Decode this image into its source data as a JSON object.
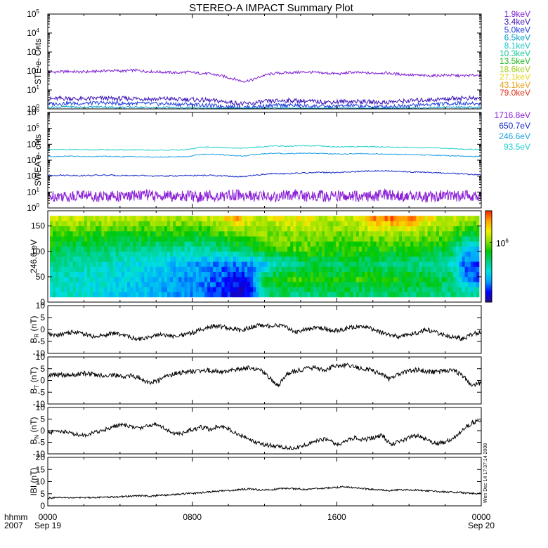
{
  "title": "STEREO-A IMPACT Summary Plot",
  "footer": {
    "row1_label": "hhmm",
    "row2_label": "2007",
    "x_ticks": [
      "0000",
      "0800",
      "1600",
      "0000"
    ],
    "x_dates": [
      "Sep 19",
      "",
      "",
      "Sep 20"
    ]
  },
  "stamp": "Wen Dec 14 17:37:14 2008",
  "chart_data": [
    {
      "type": "line",
      "ylabel": "STE e- Cnts",
      "yscale": "log",
      "ylim": [
        1,
        100000
      ],
      "yticks_exp": [
        0,
        1,
        2,
        3,
        4,
        5
      ],
      "xlim_hours": [
        0,
        24
      ],
      "series": [
        {
          "name": "1.9keV",
          "color": "#7f1fd6",
          "values": [
            85,
            90,
            95,
            88,
            92,
            100,
            105,
            98,
            110,
            95,
            90,
            85,
            80,
            88,
            75,
            70,
            55,
            40,
            28,
            35,
            60,
            75,
            80,
            85,
            88,
            80,
            75,
            70,
            85,
            80,
            75,
            80,
            70,
            65,
            60,
            55,
            58,
            60,
            55,
            58,
            62
          ]
        },
        {
          "name": "3.4keV",
          "color": "#3b14b8",
          "values": [
            3.2,
            3.5,
            3.6,
            3.3,
            3.5,
            3.7,
            3.4,
            3.5,
            3.6,
            3.4,
            3.3,
            3.5,
            3.1,
            3.2,
            3.0,
            2.8,
            2.5,
            2.2,
            1.8,
            2.0,
            2.4,
            2.6,
            2.8,
            2.7,
            2.5,
            2.4,
            2.3,
            2.4,
            2.5,
            2.4,
            2.3,
            2.2,
            2.4,
            2.6,
            2.8,
            3.0,
            3.2,
            3.5,
            3.8,
            3.6,
            3.4
          ]
        },
        {
          "name": "5.0keV",
          "color": "#1c3de0",
          "values": [
            1.8,
            1.9,
            2.0,
            1.9,
            2.0,
            2.1,
            2.0,
            1.9,
            2.0,
            1.9,
            1.8,
            1.9,
            1.7,
            1.8,
            1.6,
            1.5,
            1.4,
            1.3,
            1.2,
            1.3,
            1.4,
            1.5,
            1.6,
            1.5,
            1.4,
            1.4,
            1.3,
            1.4,
            1.5,
            1.4,
            1.3,
            1.3,
            1.4,
            1.5,
            1.6,
            1.7,
            1.8,
            1.9,
            2.0,
            1.9,
            1.8
          ]
        },
        {
          "name": "6.5keV",
          "color": "#0aa0c8",
          "values": [
            1.2,
            1.25,
            1.3,
            1.2,
            1.25,
            1.3,
            1.2,
            1.2,
            1.25,
            1.2,
            1.15,
            1.2,
            1.1,
            1.15,
            1.1,
            1.05,
            1.0,
            1.0,
            1.0,
            1.0,
            1.05,
            1.1,
            1.1,
            1.05,
            1.05,
            1.0,
            1.0,
            1.05,
            1.05,
            1.0,
            1.0,
            1.0,
            1.05,
            1.1,
            1.1,
            1.15,
            1.2,
            1.2,
            1.25,
            1.2,
            1.15
          ]
        }
      ],
      "legend": [
        {
          "label": "1.9keV",
          "color": "#7f1fd6"
        },
        {
          "label": "3.4keV",
          "color": "#3b14b8"
        },
        {
          "label": "5.0keV",
          "color": "#1c3de0"
        },
        {
          "label": "6.5keV",
          "color": "#0aa0c8"
        },
        {
          "label": "8.1keV",
          "color": "#16c8c8"
        },
        {
          "label": "10.3keV",
          "color": "#16c89c"
        },
        {
          "label": "13.5keV",
          "color": "#1fb81f"
        },
        {
          "label": "18.6keV",
          "color": "#9ecf1a"
        },
        {
          "label": "27.1keV",
          "color": "#e8d51a"
        },
        {
          "label": "43.1keV",
          "color": "#e8a01a"
        },
        {
          "label": "79.0keV",
          "color": "#e0321a"
        }
      ]
    },
    {
      "type": "line",
      "ylabel": "SWEA e- cnts",
      "yscale": "log",
      "ylim": [
        1,
        1000000
      ],
      "yticks_exp": [
        0,
        1,
        2,
        3,
        4,
        5,
        6
      ],
      "xlim_hours": [
        0,
        24
      ],
      "series": [
        {
          "name": "93.5eV",
          "color": "#1fd0cf",
          "values": [
            4500,
            4600,
            4700,
            4500,
            4400,
            4600,
            4500,
            4400,
            4500,
            4300,
            4200,
            4300,
            4400,
            4500,
            6500,
            6800,
            6200,
            5800,
            5500,
            6500,
            7000,
            8000,
            7500,
            7800,
            8000,
            7800,
            7000,
            6800,
            7000,
            7200,
            7000,
            6800,
            6500,
            6500,
            6200,
            6000,
            5800,
            5500,
            5000,
            4800,
            4700
          ]
        },
        {
          "name": "246.6eV",
          "color": "#1c9fe0",
          "values": [
            1700,
            1750,
            1800,
            1700,
            1650,
            1750,
            1700,
            1650,
            1700,
            1600,
            1550,
            1600,
            1650,
            1700,
            2300,
            2400,
            2200,
            2000,
            1800,
            2200,
            2500,
            2700,
            2600,
            2700,
            2800,
            2700,
            2500,
            2400,
            2500,
            2600,
            2500,
            2400,
            2300,
            2300,
            2200,
            2100,
            2000,
            1900,
            1800,
            1750,
            1700
          ]
        },
        {
          "name": "650.7eV",
          "color": "#1428c8",
          "values": [
            110,
            115,
            112,
            108,
            110,
            115,
            112,
            110,
            108,
            105,
            100,
            102,
            105,
            108,
            110,
            112,
            105,
            95,
            90,
            110,
            130,
            150,
            140,
            150,
            160,
            170,
            165,
            170,
            180,
            200,
            210,
            220,
            200,
            190,
            180,
            170,
            160,
            150,
            140,
            130,
            120
          ]
        },
        {
          "name": "1716.8eV",
          "color": "#8a1fd6",
          "values": [
            5,
            6,
            5,
            7,
            6,
            5,
            6,
            5,
            6,
            7,
            5,
            6,
            5,
            6,
            5,
            6,
            5,
            7,
            6,
            5,
            6,
            5,
            6,
            7,
            5,
            6,
            5,
            6,
            5,
            6,
            5,
            7,
            6,
            5,
            6,
            5,
            6,
            7,
            5,
            6,
            5
          ]
        }
      ],
      "legend": [
        {
          "label": "1716.8eV",
          "color": "#8a1fd6"
        },
        {
          "label": "650.7eV",
          "color": "#1428c8"
        },
        {
          "label": "246.6eV",
          "color": "#1c9fe0"
        },
        {
          "label": "93.5eV",
          "color": "#1fd0cf"
        }
      ]
    },
    {
      "type": "heatmap",
      "ylabel": "246.6 eV",
      "ylim": [
        0,
        180
      ],
      "yticks": [
        0,
        50,
        100,
        150
      ],
      "xlim_hours": [
        0,
        24
      ],
      "y_centers": [
        15,
        45,
        75,
        105,
        135,
        165
      ],
      "colorbar_label": "10",
      "colorbar_label_exp": "6",
      "colorbar_tick_frac": 0.65,
      "colorbar_stops": [
        "#2a0a8a",
        "#0000ff",
        "#00a0ff",
        "#00e0e0",
        "#00d080",
        "#00c800",
        "#90e000",
        "#f0f000",
        "#ffa000",
        "#ff2000"
      ],
      "values": [
        [
          0.38,
          0.36,
          0.35,
          0.34,
          0.32,
          0.3,
          0.28,
          0.28,
          0.26,
          0.24,
          0.22,
          0.2,
          0.15,
          0.12,
          0.08,
          0.1,
          0.45,
          0.48,
          0.46,
          0.44,
          0.45,
          0.46,
          0.47,
          0.46,
          0.45,
          0.46,
          0.48,
          0.46,
          0.45,
          0.44,
          0.43,
          0.42,
          0.42
        ],
        [
          0.38,
          0.37,
          0.36,
          0.34,
          0.33,
          0.31,
          0.29,
          0.28,
          0.27,
          0.25,
          0.23,
          0.21,
          0.18,
          0.15,
          0.12,
          0.14,
          0.5,
          0.55,
          0.58,
          0.6,
          0.56,
          0.55,
          0.56,
          0.58,
          0.56,
          0.55,
          0.56,
          0.54,
          0.52,
          0.5,
          0.48,
          0.22,
          0.2
        ],
        [
          0.4,
          0.4,
          0.39,
          0.38,
          0.37,
          0.35,
          0.33,
          0.32,
          0.3,
          0.28,
          0.26,
          0.24,
          0.22,
          0.2,
          0.2,
          0.22,
          0.3,
          0.38,
          0.4,
          0.45,
          0.5,
          0.48,
          0.47,
          0.48,
          0.47,
          0.46,
          0.45,
          0.44,
          0.42,
          0.4,
          0.38,
          0.18,
          0.15
        ],
        [
          0.52,
          0.5,
          0.48,
          0.47,
          0.46,
          0.45,
          0.44,
          0.43,
          0.42,
          0.42,
          0.4,
          0.4,
          0.42,
          0.45,
          0.48,
          0.5,
          0.55,
          0.58,
          0.6,
          0.62,
          0.6,
          0.58,
          0.58,
          0.59,
          0.58,
          0.57,
          0.56,
          0.55,
          0.54,
          0.52,
          0.5,
          0.3,
          0.25
        ],
        [
          0.6,
          0.6,
          0.59,
          0.58,
          0.58,
          0.57,
          0.57,
          0.56,
          0.56,
          0.56,
          0.55,
          0.55,
          0.57,
          0.6,
          0.65,
          0.66,
          0.66,
          0.66,
          0.66,
          0.66,
          0.65,
          0.64,
          0.64,
          0.65,
          0.66,
          0.68,
          0.68,
          0.67,
          0.66,
          0.64,
          0.62,
          0.55,
          0.52
        ],
        [
          0.72,
          0.72,
          0.72,
          0.71,
          0.71,
          0.7,
          0.7,
          0.7,
          0.7,
          0.7,
          0.7,
          0.7,
          0.71,
          0.8,
          0.86,
          0.74,
          0.72,
          0.76,
          0.78,
          0.8,
          0.72,
          0.72,
          0.72,
          0.72,
          0.9,
          0.92,
          0.94,
          0.92,
          0.8,
          0.74,
          0.72,
          0.7,
          0.7
        ]
      ]
    },
    {
      "type": "line",
      "ylabel": "B",
      "ylabel_sub": "R",
      "yunit": "(nT)",
      "ylim": [
        -10,
        10
      ],
      "yticks": [
        -10,
        -5,
        0,
        5,
        10
      ],
      "xlim_hours": [
        0,
        24
      ],
      "series": [
        {
          "name": "B_R",
          "color": "#000000",
          "values": [
            -2.0,
            -2.5,
            -1.5,
            -1.0,
            -2.0,
            -3.0,
            -2.5,
            -1.5,
            -2.0,
            -3.5,
            -4.0,
            -3.0,
            -2.0,
            -2.5,
            -3.0,
            -2.0,
            -1.0,
            0.5,
            1.5,
            1.0,
            0.5,
            -0.5,
            1.0,
            2.0,
            1.5,
            2.0,
            0.5,
            -1.0,
            0.0,
            1.0,
            0.5,
            -0.5,
            0.0,
            1.0,
            1.5,
            0.5,
            -1.0,
            -2.0,
            -3.0,
            -2.0,
            -1.5,
            0.0,
            -1.0,
            -2.5,
            -3.0,
            -4.0,
            -2.0,
            -1.0
          ]
        }
      ]
    },
    {
      "type": "line",
      "ylabel": "B",
      "ylabel_sub": "T",
      "yunit": "(nT)",
      "ylim": [
        -10,
        10
      ],
      "yticks": [
        -10,
        -5,
        0,
        5,
        10
      ],
      "xlim_hours": [
        0,
        24
      ],
      "series": [
        {
          "name": "B_T",
          "color": "#000000",
          "values": [
            2.0,
            2.5,
            2.0,
            2.5,
            3.0,
            2.5,
            2.0,
            2.5,
            1.5,
            2.0,
            1.0,
            -1.0,
            0.0,
            2.0,
            3.0,
            3.5,
            4.0,
            4.5,
            4.0,
            3.5,
            4.5,
            5.0,
            5.5,
            4.5,
            1.0,
            -2.0,
            3.0,
            4.0,
            5.0,
            5.5,
            4.5,
            6.0,
            6.5,
            6.0,
            5.0,
            4.5,
            3.0,
            0.5,
            2.5,
            4.0,
            4.5,
            4.0,
            3.5,
            4.0,
            4.5,
            2.0,
            -2.0,
            -1.0
          ]
        }
      ]
    },
    {
      "type": "line",
      "ylabel": "B",
      "ylabel_sub": "N",
      "yunit": "(nT)",
      "ylim": [
        -10,
        10
      ],
      "yticks": [
        -10,
        -5,
        0,
        5,
        10
      ],
      "xlim_hours": [
        0,
        24
      ],
      "series": [
        {
          "name": "B_N",
          "color": "#000000",
          "values": [
            -1.0,
            0.0,
            -0.5,
            -1.5,
            -2.0,
            -1.0,
            0.0,
            1.5,
            2.5,
            2.0,
            1.0,
            2.0,
            3.0,
            1.0,
            -1.5,
            -1.0,
            0.5,
            1.5,
            0.5,
            2.0,
            1.0,
            -1.5,
            -3.0,
            -5.0,
            -6.0,
            -6.5,
            -7.0,
            -7.5,
            -7.0,
            -5.5,
            -4.0,
            -3.5,
            -6.0,
            -4.5,
            -3.0,
            -4.0,
            -3.0,
            -2.0,
            -6.0,
            -4.5,
            -3.0,
            -2.0,
            -4.0,
            -5.5,
            -5.0,
            -3.0,
            0.5,
            3.5,
            4.5
          ]
        }
      ]
    },
    {
      "type": "line",
      "ylabel": "IBI",
      "yunit": "(nT)",
      "ylim": [
        0,
        20
      ],
      "yticks": [
        0,
        5,
        10,
        15,
        20
      ],
      "xlim_hours": [
        0,
        24
      ],
      "series": [
        {
          "name": "|B|",
          "color": "#000000",
          "values": [
            3.2,
            3.3,
            3.4,
            3.3,
            3.4,
            3.5,
            3.5,
            3.6,
            3.8,
            4.0,
            4.2,
            4.0,
            4.3,
            4.5,
            4.8,
            5.0,
            5.2,
            5.5,
            6.0,
            6.2,
            6.4,
            6.8,
            7.0,
            6.5,
            6.6,
            7.0,
            7.2,
            7.0,
            6.8,
            7.0,
            7.3,
            7.5,
            7.8,
            7.6,
            7.2,
            6.8,
            6.5,
            6.3,
            6.5,
            6.6,
            6.5,
            6.2,
            6.0,
            5.8,
            5.6,
            5.4,
            5.2,
            5.0
          ]
        }
      ]
    }
  ]
}
